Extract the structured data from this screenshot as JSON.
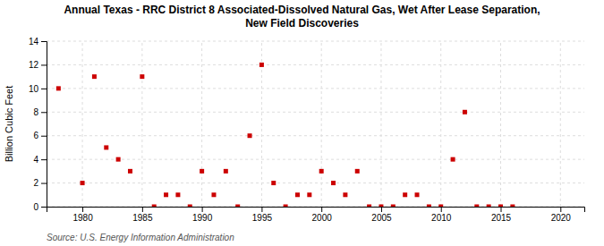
{
  "chart_data": {
    "type": "scatter",
    "title": "Annual Texas - RRC District 8 Associated-Dissolved Natural Gas, Wet After Lease Separation,\nNew Field Discoveries",
    "ylabel": "Billion Cubic Feet",
    "source": "Source: U.S. Energy Information Administration",
    "x": [
      1978,
      1980,
      1981,
      1982,
      1983,
      1984,
      1985,
      1986,
      1987,
      1988,
      1989,
      1990,
      1991,
      1992,
      1993,
      1994,
      1995,
      1996,
      1997,
      1998,
      1999,
      2000,
      2001,
      2002,
      2003,
      2004,
      2005,
      2006,
      2007,
      2008,
      2009,
      2010,
      2011,
      2012,
      2013,
      2014,
      2015,
      2016
    ],
    "values": [
      10,
      2,
      11,
      5,
      4,
      3,
      11,
      0,
      1,
      1,
      0,
      3,
      1,
      3,
      0,
      6,
      12,
      2,
      0,
      1,
      1,
      3,
      2,
      1,
      3,
      0,
      0,
      0,
      1,
      1,
      0,
      0,
      4,
      8,
      0,
      0,
      0,
      0
    ],
    "color": "#cc0000",
    "marker": "square",
    "xlim": [
      1977,
      2022
    ],
    "ylim": [
      0,
      14
    ],
    "xticks": [
      1980,
      1985,
      1990,
      1995,
      2000,
      2005,
      2010,
      2015,
      2020
    ],
    "yticks": [
      0,
      2,
      4,
      6,
      8,
      10,
      12,
      14
    ],
    "grid": true
  }
}
